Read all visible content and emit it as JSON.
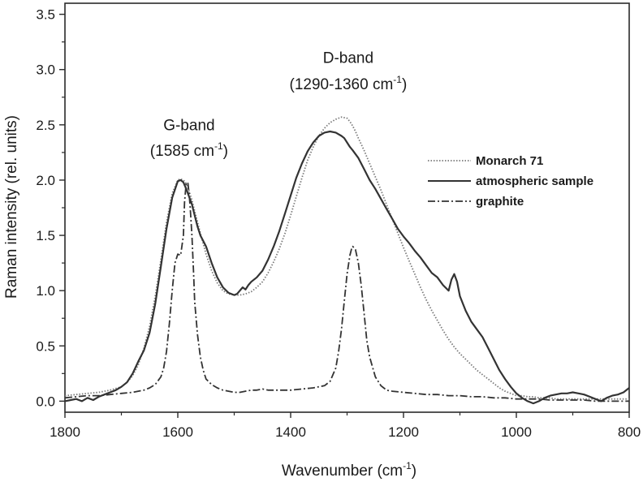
{
  "chart_data": {
    "type": "line",
    "title": "",
    "xlabel": "Wavenumber (cm",
    "xlabel_sup": "-1",
    "xlabel_end": ")",
    "ylabel": "Raman intensity  (rel. units)",
    "xlim": [
      1800,
      800
    ],
    "ylim": [
      -0.1,
      3.6
    ],
    "x_ticks": [
      1800,
      1600,
      1400,
      1200,
      1000,
      800
    ],
    "y_ticks": [
      0.0,
      0.5,
      1.0,
      1.5,
      2.0,
      2.5,
      3.0,
      3.5
    ],
    "y_tick_labels": [
      "0.0",
      "0.5",
      "1.0",
      "1.5",
      "2.0",
      "2.5",
      "3.0",
      "3.5"
    ],
    "legend_position": "right",
    "annotations": [
      {
        "id": "g",
        "line1": "G-band",
        "line2_pre": "(1585 cm",
        "line2_sup": "-1",
        "line2_post": ")",
        "x": 1580,
        "y_line1": 2.45,
        "y_line2": 2.22
      },
      {
        "id": "d",
        "line1": "D-band",
        "line2_pre": "(1290-1360 cm",
        "line2_sup": "-1",
        "line2_post": ")",
        "x": 1298,
        "y_line1": 3.06,
        "y_line2": 2.82
      }
    ],
    "series": [
      {
        "name": "Monarch 71",
        "style": "dotted",
        "color": "#7a7a7a",
        "x": [
          1800,
          1780,
          1760,
          1740,
          1720,
          1700,
          1690,
          1680,
          1670,
          1660,
          1650,
          1640,
          1630,
          1620,
          1610,
          1600,
          1595,
          1590,
          1585,
          1580,
          1575,
          1570,
          1560,
          1550,
          1540,
          1530,
          1520,
          1510,
          1500,
          1490,
          1480,
          1470,
          1460,
          1450,
          1440,
          1430,
          1420,
          1410,
          1400,
          1390,
          1380,
          1370,
          1360,
          1350,
          1340,
          1330,
          1320,
          1310,
          1300,
          1295,
          1290,
          1285,
          1280,
          1270,
          1260,
          1250,
          1240,
          1230,
          1220,
          1210,
          1200,
          1190,
          1180,
          1170,
          1160,
          1150,
          1140,
          1130,
          1120,
          1110,
          1100,
          1090,
          1080,
          1070,
          1060,
          1050,
          1040,
          1030,
          1020,
          1010,
          1000,
          990,
          980,
          970,
          960,
          950,
          940,
          930,
          920,
          910,
          900,
          890,
          880,
          870,
          860,
          850,
          840,
          830,
          820,
          810,
          800
        ],
        "y": [
          0.05,
          0.06,
          0.07,
          0.08,
          0.1,
          0.13,
          0.17,
          0.23,
          0.33,
          0.48,
          0.68,
          0.95,
          1.28,
          1.62,
          1.88,
          2.0,
          2.01,
          2.0,
          1.97,
          1.9,
          1.82,
          1.72,
          1.52,
          1.33,
          1.18,
          1.07,
          1.0,
          0.97,
          0.96,
          0.96,
          0.97,
          0.99,
          1.03,
          1.08,
          1.16,
          1.26,
          1.38,
          1.52,
          1.68,
          1.85,
          2.02,
          2.18,
          2.3,
          2.4,
          2.47,
          2.52,
          2.55,
          2.57,
          2.56,
          2.53,
          2.49,
          2.44,
          2.38,
          2.27,
          2.15,
          2.03,
          1.91,
          1.78,
          1.65,
          1.52,
          1.39,
          1.27,
          1.15,
          1.03,
          0.92,
          0.82,
          0.73,
          0.64,
          0.56,
          0.49,
          0.43,
          0.38,
          0.33,
          0.28,
          0.24,
          0.2,
          0.16,
          0.12,
          0.09,
          0.07,
          0.05,
          0.05,
          0.04,
          0.04,
          0.03,
          0.03,
          0.03,
          0.02,
          0.02,
          0.02,
          0.02,
          0.02,
          0.02,
          0.02,
          0.02,
          0.02,
          0.02,
          0.02,
          0.02,
          0.02,
          0.02
        ]
      },
      {
        "name": "atmospheric sample",
        "style": "solid",
        "color": "#333333",
        "x": [
          1800,
          1790,
          1780,
          1770,
          1760,
          1750,
          1740,
          1730,
          1720,
          1710,
          1700,
          1690,
          1680,
          1670,
          1660,
          1650,
          1640,
          1630,
          1620,
          1610,
          1600,
          1595,
          1590,
          1585,
          1580,
          1575,
          1570,
          1565,
          1560,
          1555,
          1550,
          1540,
          1530,
          1520,
          1510,
          1500,
          1495,
          1490,
          1485,
          1480,
          1475,
          1470,
          1460,
          1450,
          1440,
          1430,
          1420,
          1410,
          1400,
          1390,
          1380,
          1370,
          1360,
          1350,
          1340,
          1330,
          1320,
          1310,
          1305,
          1300,
          1295,
          1290,
          1280,
          1270,
          1260,
          1250,
          1240,
          1230,
          1220,
          1210,
          1200,
          1190,
          1180,
          1170,
          1160,
          1150,
          1140,
          1130,
          1120,
          1115,
          1110,
          1105,
          1100,
          1090,
          1080,
          1070,
          1060,
          1050,
          1040,
          1030,
          1020,
          1010,
          1000,
          990,
          980,
          970,
          960,
          950,
          940,
          930,
          920,
          910,
          900,
          890,
          880,
          870,
          860,
          850,
          840,
          830,
          820,
          810,
          800
        ],
        "y": [
          0.0,
          0.01,
          0.02,
          0.0,
          0.03,
          0.01,
          0.04,
          0.06,
          0.08,
          0.1,
          0.13,
          0.17,
          0.25,
          0.36,
          0.46,
          0.62,
          0.88,
          1.22,
          1.56,
          1.84,
          1.99,
          2.0,
          1.98,
          1.92,
          1.85,
          1.78,
          1.68,
          1.58,
          1.5,
          1.45,
          1.4,
          1.25,
          1.12,
          1.03,
          0.98,
          0.96,
          0.97,
          1.0,
          1.03,
          1.01,
          1.05,
          1.08,
          1.12,
          1.18,
          1.28,
          1.4,
          1.54,
          1.7,
          1.86,
          2.02,
          2.15,
          2.26,
          2.34,
          2.4,
          2.43,
          2.44,
          2.43,
          2.4,
          2.38,
          2.34,
          2.3,
          2.27,
          2.2,
          2.1,
          2.0,
          1.92,
          1.83,
          1.74,
          1.65,
          1.56,
          1.49,
          1.43,
          1.36,
          1.3,
          1.23,
          1.16,
          1.12,
          1.05,
          1.0,
          1.1,
          1.15,
          1.08,
          0.95,
          0.82,
          0.72,
          0.65,
          0.58,
          0.48,
          0.38,
          0.28,
          0.2,
          0.13,
          0.07,
          0.03,
          0.0,
          -0.02,
          0.0,
          0.03,
          0.05,
          0.06,
          0.07,
          0.07,
          0.08,
          0.07,
          0.06,
          0.04,
          0.02,
          0.0,
          0.03,
          0.05,
          0.06,
          0.08,
          0.12
        ]
      },
      {
        "name": "graphite",
        "style": "dashdot",
        "color": "#333333",
        "x": [
          1800,
          1780,
          1760,
          1740,
          1720,
          1700,
          1680,
          1660,
          1650,
          1640,
          1630,
          1625,
          1620,
          1615,
          1610,
          1605,
          1600,
          1595,
          1590,
          1588,
          1585,
          1582,
          1580,
          1578,
          1575,
          1572,
          1570,
          1565,
          1560,
          1555,
          1550,
          1540,
          1530,
          1520,
          1510,
          1500,
          1490,
          1480,
          1470,
          1460,
          1450,
          1440,
          1420,
          1400,
          1380,
          1360,
          1340,
          1330,
          1320,
          1315,
          1310,
          1305,
          1300,
          1295,
          1292,
          1290,
          1288,
          1285,
          1280,
          1275,
          1270,
          1265,
          1260,
          1250,
          1240,
          1230,
          1220,
          1200,
          1180,
          1160,
          1140,
          1120,
          1100,
          1080,
          1060,
          1040,
          1020,
          1000,
          980,
          960,
          940,
          920,
          900,
          880,
          860,
          840,
          820,
          800
        ],
        "y": [
          0.03,
          0.04,
          0.05,
          0.05,
          0.06,
          0.07,
          0.08,
          0.1,
          0.12,
          0.15,
          0.22,
          0.3,
          0.45,
          0.7,
          1.0,
          1.25,
          1.33,
          1.32,
          1.5,
          1.8,
          1.98,
          1.97,
          1.88,
          1.75,
          1.5,
          1.15,
          0.9,
          0.6,
          0.4,
          0.28,
          0.2,
          0.15,
          0.12,
          0.1,
          0.09,
          0.08,
          0.08,
          0.09,
          0.1,
          0.1,
          0.11,
          0.1,
          0.1,
          0.1,
          0.11,
          0.12,
          0.14,
          0.18,
          0.3,
          0.45,
          0.65,
          0.9,
          1.15,
          1.32,
          1.38,
          1.4,
          1.39,
          1.37,
          1.25,
          1.05,
          0.8,
          0.55,
          0.4,
          0.22,
          0.14,
          0.1,
          0.09,
          0.08,
          0.07,
          0.06,
          0.06,
          0.05,
          0.05,
          0.04,
          0.04,
          0.03,
          0.03,
          0.02,
          0.02,
          0.02,
          0.01,
          0.01,
          0.01,
          0.01,
          0.0,
          0.0,
          0.0,
          0.0
        ]
      }
    ]
  }
}
